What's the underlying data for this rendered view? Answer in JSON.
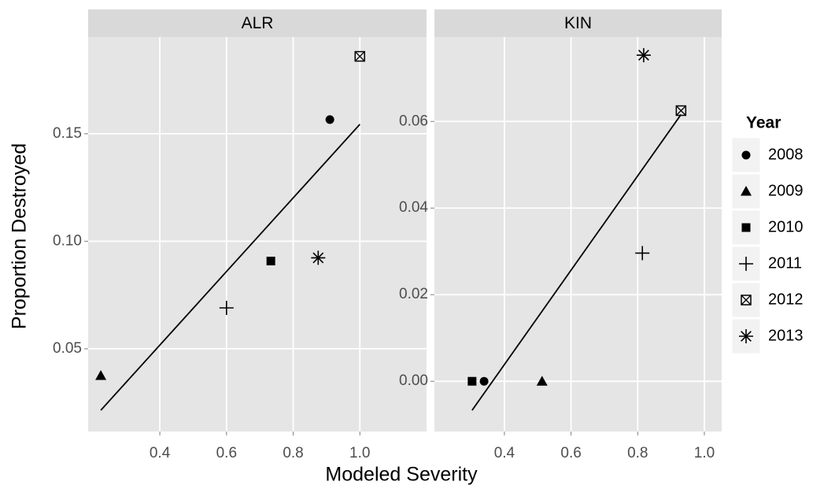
{
  "chart_data": {
    "type": "scatter",
    "x_label": "Modeled Severity",
    "y_label": "Proportion Destroyed",
    "legend_title": "Year",
    "years": [
      "2008",
      "2009",
      "2010",
      "2011",
      "2012",
      "2013"
    ],
    "shapes": [
      "circle",
      "triangle",
      "square",
      "plus",
      "boxed-x",
      "asterisk"
    ],
    "color": "#000000",
    "grid": true,
    "panels": [
      {
        "title": "ALR",
        "xlim": [
          0.185,
          1.2
        ],
        "ylim": [
          0.0115,
          0.195
        ],
        "xticks": [
          0.4,
          0.6,
          0.8,
          {
            "value": 1,
            "label": "1.0"
          }
        ],
        "yticks": [
          0.05,
          {
            "value": 0.1,
            "label": "0.10"
          },
          0.15
        ],
        "x": [
          0.91,
          0.223,
          0.733,
          0.6,
          1.0,
          0.875
        ],
        "y": [
          0.1566,
          0.0375,
          0.0908,
          0.069,
          0.186,
          0.0923
        ],
        "fit": {
          "x": [
            0.223,
            1.0
          ],
          "y": [
            0.0214,
            0.1544
          ]
        }
      },
      {
        "title": "KIN",
        "xlim": [
          0.19,
          1.052
        ],
        "ylim": [
          -0.0116,
          0.0795
        ],
        "xticks": [
          0.4,
          0.6,
          0.8,
          {
            "value": 1,
            "label": "1.0"
          }
        ],
        "yticks": [
          {
            "value": 0,
            "label": "0.00"
          },
          {
            "value": 0.02,
            "label": "0.02"
          },
          {
            "value": 0.04,
            "label": "0.04"
          },
          {
            "value": 0.06,
            "label": "0.06"
          }
        ],
        "x": [
          0.339,
          0.513,
          0.303,
          0.814,
          0.93,
          0.818
        ],
        "y": [
          0,
          0,
          0,
          0.0296,
          0.0625,
          0.0753
        ],
        "fit": {
          "x": [
            0.303,
            0.93
          ],
          "y": [
            -0.0067,
            0.0616
          ]
        }
      }
    ]
  }
}
